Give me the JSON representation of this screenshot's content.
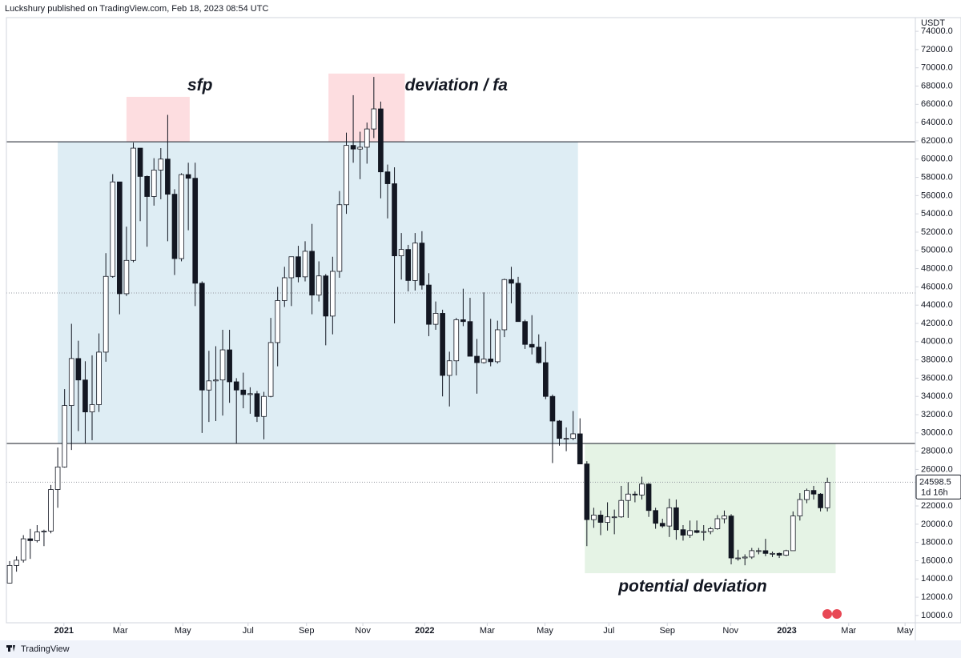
{
  "header": "Luckshury published on TradingView.com, Feb 18, 2023 08:54 UTC",
  "footer": "TradingView",
  "chart_data": {
    "type": "candlestick",
    "currency": "USDT",
    "last_price_label": "24598.5",
    "countdown": "1d 16h",
    "xlim": [
      -0.47,
      131.8
    ],
    "ylim": [
      9200,
      75500
    ],
    "xticks": [
      {
        "value": 7.9,
        "label": "2021"
      },
      {
        "value": 16.1,
        "label": "Mar"
      },
      {
        "value": 25.2,
        "label": "May"
      },
      {
        "value": 34.7,
        "label": "Jul"
      },
      {
        "value": 43.2,
        "label": "Sep"
      },
      {
        "value": 51.4,
        "label": "Nov"
      },
      {
        "value": 60.4,
        "label": "2022"
      },
      {
        "value": 69.5,
        "label": "Mar"
      },
      {
        "value": 77.9,
        "label": "May"
      },
      {
        "value": 87.2,
        "label": "Jul"
      },
      {
        "value": 95.7,
        "label": "Sep"
      },
      {
        "value": 104.9,
        "label": "Nov"
      },
      {
        "value": 113.1,
        "label": "2023"
      },
      {
        "value": 122.1,
        "label": "Mar"
      },
      {
        "value": 130.3,
        "label": "May"
      }
    ],
    "yticks": [
      {
        "value": 74000,
        "label": "74000.0"
      },
      {
        "value": 72000,
        "label": "72000.0"
      },
      {
        "value": 70000,
        "label": "70000.0"
      },
      {
        "value": 68000,
        "label": "68000.0"
      },
      {
        "value": 66000,
        "label": "66000.0"
      },
      {
        "value": 64000,
        "label": "64000.0"
      },
      {
        "value": 62000,
        "label": "62000.0"
      },
      {
        "value": 60000,
        "label": "60000.0"
      },
      {
        "value": 58000,
        "label": "58000.0"
      },
      {
        "value": 56000,
        "label": "56000.0"
      },
      {
        "value": 54000,
        "label": "54000.0"
      },
      {
        "value": 52000,
        "label": "52000.0"
      },
      {
        "value": 50000,
        "label": "50000.0"
      },
      {
        "value": 48000,
        "label": "48000.0"
      },
      {
        "value": 46000,
        "label": "46000.0"
      },
      {
        "value": 44000,
        "label": "44000.0"
      },
      {
        "value": 42000,
        "label": "42000.0"
      },
      {
        "value": 40000,
        "label": "40000.0"
      },
      {
        "value": 38000,
        "label": "38000.0"
      },
      {
        "value": 36000,
        "label": "36000.0"
      },
      {
        "value": 34000,
        "label": "34000.0"
      },
      {
        "value": 32000,
        "label": "32000.0"
      },
      {
        "value": 30000,
        "label": "30000.0"
      },
      {
        "value": 28000,
        "label": "28000.0"
      },
      {
        "value": 26000,
        "label": "26000.0"
      },
      {
        "value": 22000,
        "label": "22000.0"
      },
      {
        "value": 20000,
        "label": "20000.0"
      },
      {
        "value": 18000,
        "label": "18000.0"
      },
      {
        "value": 16000,
        "label": "16000.0"
      },
      {
        "value": 14000,
        "label": "14000.0"
      },
      {
        "value": 12000,
        "label": "12000.0"
      },
      {
        "value": 10000,
        "label": "10000.0"
      }
    ],
    "up_color": "#ffffff",
    "down_color": "#131722",
    "zones": [
      {
        "x": [
          7.0,
          82.7
        ],
        "y": [
          28840,
          61900
        ],
        "color": "#deedf4"
      },
      {
        "x": [
          17.0,
          26.2
        ],
        "y": [
          61900,
          66820
        ],
        "color": "#fddde0"
      },
      {
        "x": [
          46.4,
          57.5
        ],
        "y": [
          61900,
          69370
        ],
        "color": "#fddde0"
      },
      {
        "x": [
          83.7,
          120.2
        ],
        "y": [
          14630,
          28840
        ],
        "color": "#e5f3e5"
      }
    ],
    "levels": [
      61900,
      28840
    ],
    "dotted_levels": [
      45330,
      24598.5
    ],
    "annotations": [
      {
        "text": "sfp",
        "x": 27.7,
        "y": 68000
      },
      {
        "text": "deviation / fa",
        "x": 65.0,
        "y": 68000
      },
      {
        "text": "potential deviation",
        "x": 99.4,
        "y": 13100
      }
    ],
    "ohlc": [
      [
        13550,
        15960,
        13520,
        15480
      ],
      [
        15480,
        16480,
        14800,
        16050
      ],
      [
        16050,
        18800,
        15800,
        18400
      ],
      [
        18400,
        19480,
        16200,
        18200
      ],
      [
        18200,
        19900,
        18000,
        19150
      ],
      [
        19150,
        19400,
        17600,
        19250
      ],
      [
        19250,
        24300,
        19000,
        23800
      ],
      [
        23800,
        28400,
        21800,
        26270
      ],
      [
        26270,
        34800,
        26200,
        33000
      ],
      [
        33000,
        41950,
        28130,
        38150
      ],
      [
        38150,
        40100,
        30200,
        35800
      ],
      [
        35800,
        37850,
        28850,
        32300
      ],
      [
        32300,
        38500,
        29200,
        33100
      ],
      [
        33100,
        40900,
        32300,
        38850
      ],
      [
        38850,
        49700,
        37800,
        47150
      ],
      [
        47150,
        58350,
        47000,
        57500
      ],
      [
        57500,
        57500,
        43000,
        45250
      ],
      [
        45250,
        52600,
        45000,
        48900
      ],
      [
        48900,
        61800,
        48700,
        61200
      ],
      [
        61200,
        61200,
        53200,
        58100
      ],
      [
        58100,
        58200,
        50400,
        55900
      ],
      [
        55900,
        60100,
        54900,
        58800
      ],
      [
        58800,
        61200,
        55600,
        60000
      ],
      [
        60000,
        64850,
        51000,
        56150
      ],
      [
        56150,
        56700,
        47300,
        49100
      ],
      [
        49100,
        58450,
        48800,
        58300
      ],
      [
        58300,
        59600,
        52200,
        57900
      ],
      [
        57900,
        59600,
        43900,
        46400
      ],
      [
        46400,
        46600,
        30000,
        34700
      ],
      [
        34700,
        39000,
        31200,
        35700
      ],
      [
        35700,
        39500,
        31300,
        35800
      ],
      [
        35800,
        41300,
        31900,
        39100
      ],
      [
        39100,
        41300,
        33300,
        35600
      ],
      [
        35600,
        36000,
        28800,
        34700
      ],
      [
        34700,
        36600,
        32700,
        34200
      ],
      [
        34200,
        35000,
        32100,
        34300
      ],
      [
        34300,
        34600,
        31200,
        31800
      ],
      [
        31800,
        34500,
        29300,
        34000
      ],
      [
        34000,
        42600,
        33900,
        39900
      ],
      [
        39900,
        46000,
        37300,
        44500
      ],
      [
        44500,
        48200,
        43800,
        47000
      ],
      [
        47000,
        49300,
        43900,
        49300
      ],
      [
        49300,
        50500,
        46500,
        47100
      ],
      [
        47100,
        51000,
        46600,
        49900
      ],
      [
        49900,
        52900,
        43000,
        45100
      ],
      [
        45100,
        48800,
        44400,
        47200
      ],
      [
        47200,
        47400,
        39600,
        42800
      ],
      [
        42800,
        49300,
        40800,
        47700
      ],
      [
        47700,
        56500,
        47000,
        55000
      ],
      [
        55000,
        62900,
        54000,
        61500
      ],
      [
        61500,
        67000,
        59600,
        61100
      ],
      [
        61100,
        63000,
        57800,
        61300
      ],
      [
        61300,
        64000,
        59500,
        63300
      ],
      [
        63300,
        69000,
        62300,
        65500
      ],
      [
        65500,
        66300,
        55700,
        58600
      ],
      [
        58600,
        59400,
        53500,
        57300
      ],
      [
        57300,
        59100,
        42000,
        49400
      ],
      [
        49400,
        51900,
        46800,
        50100
      ],
      [
        50100,
        50600,
        45500,
        46700
      ],
      [
        46700,
        51900,
        45600,
        50800
      ],
      [
        50800,
        52100,
        45700,
        46200
      ],
      [
        46200,
        47500,
        40600,
        41900
      ],
      [
        41900,
        44400,
        41300,
        43100
      ],
      [
        43100,
        43500,
        34000,
        36300
      ],
      [
        36300,
        38900,
        32900,
        37900
      ],
      [
        37900,
        42600,
        36300,
        42400
      ],
      [
        42400,
        45800,
        41700,
        42200
      ],
      [
        42200,
        44800,
        38800,
        38400
      ],
      [
        38400,
        40300,
        34300,
        37700
      ],
      [
        37700,
        45400,
        37600,
        38100
      ],
      [
        38100,
        42500,
        37300,
        37800
      ],
      [
        37800,
        42300,
        37600,
        41300
      ],
      [
        41300,
        46900,
        40500,
        46800
      ],
      [
        46800,
        48200,
        44200,
        46400
      ],
      [
        46400,
        47100,
        42700,
        42200
      ],
      [
        42200,
        42400,
        39200,
        39700
      ],
      [
        39700,
        42900,
        38600,
        39400
      ],
      [
        39400,
        40800,
        37600,
        37700
      ],
      [
        37700,
        40000,
        33700,
        34000
      ],
      [
        34000,
        34200,
        26700,
        31300
      ],
      [
        31300,
        31400,
        28600,
        29400
      ],
      [
        29400,
        30600,
        28000,
        29400
      ],
      [
        29400,
        32400,
        29200,
        29900
      ],
      [
        29900,
        31600,
        26600,
        26600
      ],
      [
        26600,
        26900,
        17600,
        20500
      ],
      [
        20500,
        21800,
        19600,
        21000
      ],
      [
        21000,
        21500,
        18800,
        20200
      ],
      [
        20200,
        22400,
        19300,
        20800
      ],
      [
        20800,
        21600,
        18900,
        20800
      ],
      [
        20800,
        24200,
        20700,
        22600
      ],
      [
        22600,
        24600,
        20700,
        23300
      ],
      [
        23300,
        23600,
        22400,
        23200
      ],
      [
        23200,
        25200,
        22700,
        24400
      ],
      [
        24400,
        24500,
        20800,
        21500
      ],
      [
        21500,
        21800,
        19500,
        20100
      ],
      [
        20100,
        20600,
        19600,
        19800
      ],
      [
        19800,
        22800,
        18600,
        21800
      ],
      [
        21800,
        22700,
        18300,
        19400
      ],
      [
        19400,
        19900,
        18200,
        18800
      ],
      [
        18800,
        20400,
        18500,
        19300
      ],
      [
        19300,
        20400,
        19000,
        19100
      ],
      [
        19100,
        19900,
        18200,
        19200
      ],
      [
        19200,
        19700,
        18900,
        19500
      ],
      [
        19500,
        21000,
        19400,
        20600
      ],
      [
        20600,
        21500,
        20100,
        20900
      ],
      [
        20900,
        21100,
        15600,
        16300
      ],
      [
        16300,
        17200,
        16000,
        16300
      ],
      [
        16300,
        16700,
        15500,
        16400
      ],
      [
        16400,
        17400,
        16200,
        17100
      ],
      [
        17100,
        17400,
        16700,
        17100
      ],
      [
        17100,
        18400,
        16500,
        16800
      ],
      [
        16800,
        17000,
        16400,
        16800
      ],
      [
        16800,
        16900,
        16300,
        16600
      ],
      [
        16600,
        17200,
        16500,
        17100
      ],
      [
        17100,
        21400,
        17100,
        20900
      ],
      [
        20900,
        23400,
        20400,
        22700
      ],
      [
        22700,
        23900,
        22300,
        23700
      ],
      [
        23700,
        24200,
        22700,
        23300
      ],
      [
        23300,
        23400,
        21400,
        21800
      ],
      [
        21800,
        25100,
        21400,
        24598.5
      ]
    ]
  }
}
